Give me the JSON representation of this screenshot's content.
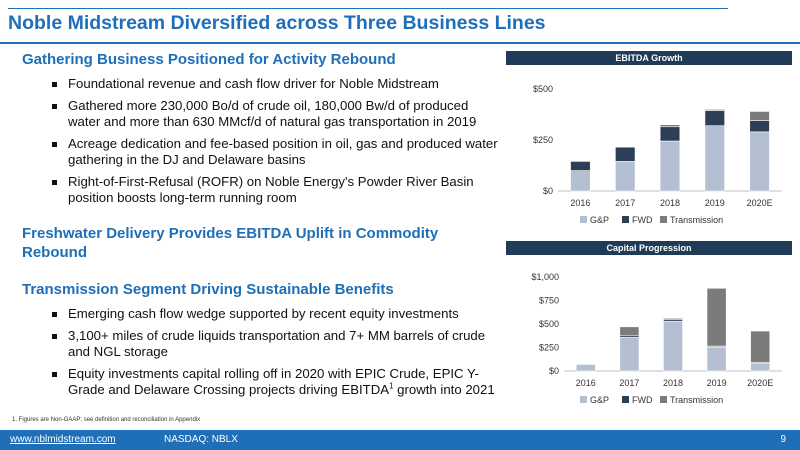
{
  "page": {
    "title": "Noble Midstream Diversified across Three Business Lines",
    "page_number": "9"
  },
  "left": {
    "section1": {
      "heading": "Gathering Business Positioned for Activity Rebound",
      "bullets": [
        "Foundational revenue and cash flow driver for Noble Midstream",
        "Gathered more 230,000 Bo/d of crude oil, 180,000 Bw/d of produced water and more than 630 MMcf/d of natural gas transportation in 2019",
        "Acreage dedication and fee-based position in oil, gas and produced water gathering in the DJ and Delaware basins",
        "Right-of-First-Refusal (ROFR) on Noble Energy's Powder River Basin position boosts long-term running room"
      ]
    },
    "section2": {
      "heading": "Freshwater Delivery Provides EBITDA Uplift in Commodity Rebound"
    },
    "section3": {
      "heading": "Transmission Segment Driving Sustainable Benefits",
      "bullets": [
        "Emerging cash flow wedge supported by recent equity investments",
        " 3,100+ miles of crude liquids transportation and 7+ MM barrels of crude and NGL storage"
      ],
      "last_bullet_before": "Equity investments capital rolling off in 2020 with EPIC Crude, EPIC Y-Grade and Delaware Crossing projects driving EBITDA",
      "last_bullet_sup": "1",
      "last_bullet_after": " growth into 2021"
    }
  },
  "footnote": "1.    Figures are Non-GAAP; see definition and reconciliation in Appendix",
  "footer": {
    "url": "www.nblmidstream.com",
    "ticker": "NASDAQ: NBLX"
  },
  "colors": {
    "brand_blue": "#1f6fb8",
    "header_navy": "#1f3b57",
    "gp": "#b4bfd2",
    "fwd": "#2d3e57",
    "transmission": "#7b7b7b"
  },
  "chart_data": [
    {
      "type": "bar",
      "stacked": true,
      "title": "EBITDA Growth",
      "categories": [
        "2016",
        "2017",
        "2018",
        "2019",
        "2020E"
      ],
      "ytick_labels": [
        "$0",
        "$250",
        "$500"
      ],
      "ylim": [
        0,
        500
      ],
      "legend": "bottom",
      "series": [
        {
          "name": "G&P",
          "color": "#b4bfd2",
          "values": [
            100,
            145,
            245,
            320,
            290
          ]
        },
        {
          "name": "FWD",
          "color": "#2d3e57",
          "values": [
            45,
            70,
            70,
            75,
            55
          ]
        },
        {
          "name": "Transmission",
          "color": "#7b7b7b",
          "values": [
            0,
            0,
            10,
            5,
            45
          ]
        }
      ]
    },
    {
      "type": "bar",
      "stacked": true,
      "title": "Capital Progression",
      "categories": [
        "2016",
        "2017",
        "2018",
        "2019",
        "2020E"
      ],
      "ytick_labels": [
        "$0",
        "$250",
        "$500",
        "$750",
        "$1,000"
      ],
      "ylim": [
        0,
        1000
      ],
      "legend": "bottom",
      "series": [
        {
          "name": "G&P",
          "color": "#b4bfd2",
          "values": [
            70,
            360,
            530,
            255,
            80
          ]
        },
        {
          "name": "FWD",
          "color": "#2d3e57",
          "values": [
            0,
            20,
            20,
            10,
            10
          ]
        },
        {
          "name": "Transmission",
          "color": "#7b7b7b",
          "values": [
            0,
            90,
            10,
            615,
            335
          ]
        }
      ]
    }
  ]
}
